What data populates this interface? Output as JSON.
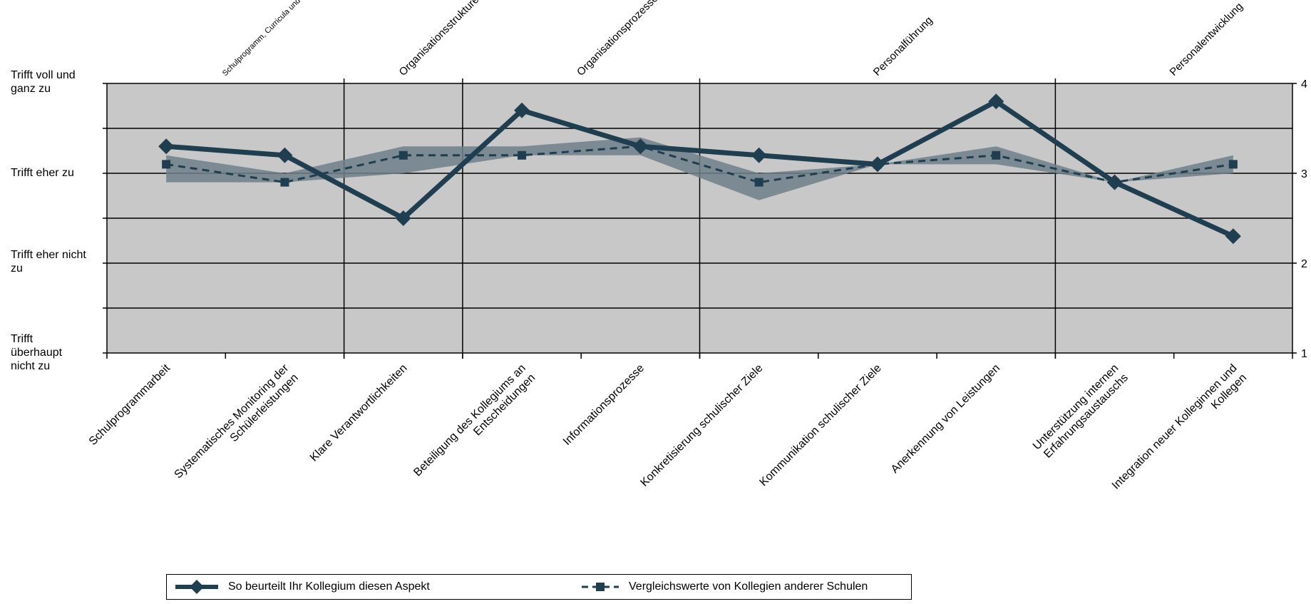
{
  "chart_data": {
    "type": "line",
    "categories": [
      [
        "Schulprogrammarbeit"
      ],
      [
        "Systematisches Monitoring der",
        "Schülerleistungen"
      ],
      [
        "Klare Verantwortlichkeiten"
      ],
      [
        "Beteiligung des Kollegiums an",
        "Entscheidungen"
      ],
      [
        "Informationsprozesse"
      ],
      [
        "Konkretisierung schulischer Ziele"
      ],
      [
        "Kommunikation schulischer Ziele"
      ],
      [
        "Anerkennung von Leistungen"
      ],
      [
        "Unterstützung internen",
        "Erfahrungsaustauschs"
      ],
      [
        "Integration neuer Kolleginnen und",
        "Kollegen"
      ]
    ],
    "series": [
      {
        "name": "So beurteilt Ihr Kollegium diesen Aspekt",
        "values": [
          3.3,
          3.2,
          2.5,
          3.7,
          3.3,
          3.2,
          3.1,
          3.8,
          2.9,
          2.3
        ]
      },
      {
        "name": "Vergleichswerte von Kollegien anderer Schulen",
        "values": [
          3.1,
          2.9,
          3.2,
          3.2,
          3.3,
          2.9,
          3.1,
          3.2,
          2.9,
          3.1
        ]
      }
    ],
    "band": {
      "lower": [
        2.9,
        2.9,
        3.0,
        3.2,
        3.2,
        2.7,
        3.1,
        3.1,
        2.9,
        3.0
      ],
      "upper": [
        3.2,
        3.0,
        3.3,
        3.3,
        3.4,
        3.0,
        3.1,
        3.3,
        2.9,
        3.2
      ]
    },
    "ylim": [
      1,
      4
    ],
    "y_ticks_right": [
      "1",
      "2",
      "3",
      "4"
    ],
    "y_labels_left": [
      {
        "value": 4,
        "lines": [
          "Trifft voll und",
          "ganz zu"
        ]
      },
      {
        "value": 3,
        "lines": [
          "Trifft eher zu"
        ]
      },
      {
        "value": 2,
        "lines": [
          "Trifft eher nicht",
          "zu"
        ]
      },
      {
        "value": 1,
        "lines": [
          "Trifft",
          "überhaupt",
          "nicht zu"
        ]
      }
    ],
    "groups": [
      {
        "label": "Schulprogramm, Curricula und Evaluation",
        "start": 0,
        "end": 2
      },
      {
        "label": "Organisationsstrukturen",
        "start": 2,
        "end": 3
      },
      {
        "label": "Organisationsprozesse",
        "start": 3,
        "end": 5
      },
      {
        "label": "Personalführung",
        "start": 5,
        "end": 8
      },
      {
        "label": "Personalentwicklung",
        "start": 8,
        "end": 10
      }
    ],
    "grid": true,
    "colors": {
      "series": "#1f3f50",
      "band": "#6f808a",
      "plot_bg": "#c8c8c8"
    }
  },
  "legend": {
    "item1": "So beurteilt Ihr Kollegium diesen Aspekt",
    "item2": "Vergleichswerte von Kollegien anderer Schulen"
  }
}
